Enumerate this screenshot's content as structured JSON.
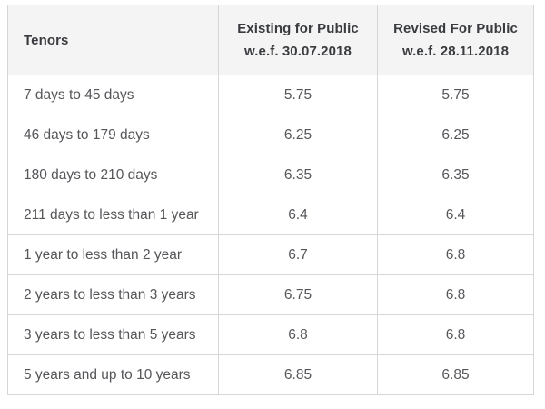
{
  "chart_data": {
    "type": "table",
    "title": "",
    "columns": [
      "Tenors",
      "Existing for Public w.e.f. 30.07.2018",
      "Revised For Public w.e.f. 28.11.2018"
    ],
    "categories": [
      "7 days to 45 days",
      "46 days to 179 days",
      "180 days to 210 days",
      "211 days to less than 1 year",
      "1 year to less than 2 year",
      "2 years to less than 3 years",
      "3 years to less than 5 years",
      "5 years and up to 10 years"
    ],
    "series": [
      {
        "name": "Existing for Public w.e.f. 30.07.2018",
        "values": [
          5.75,
          6.25,
          6.35,
          6.4,
          6.7,
          6.75,
          6.8,
          6.85
        ]
      },
      {
        "name": "Revised For Public w.e.f. 28.11.2018",
        "values": [
          5.75,
          6.25,
          6.35,
          6.4,
          6.8,
          6.8,
          6.8,
          6.85
        ]
      }
    ]
  },
  "table": {
    "header": {
      "tenors_label": "Tenors",
      "existing_line1": "Existing for Public",
      "existing_line2": "w.e.f. 30.07.2018",
      "revised_line1": "Revised For Public",
      "revised_line2": "w.e.f. 28.11.2018"
    },
    "rows": [
      {
        "tenor": "7 days to 45 days",
        "existing": "5.75",
        "revised": "5.75"
      },
      {
        "tenor": "46 days to 179 days",
        "existing": "6.25",
        "revised": "6.25"
      },
      {
        "tenor": "180 days to 210 days",
        "existing": "6.35",
        "revised": "6.35"
      },
      {
        "tenor": "211 days to less than 1 year",
        "existing": "6.4",
        "revised": "6.4"
      },
      {
        "tenor": "1 year to less than 2 year",
        "existing": "6.7",
        "revised": "6.8"
      },
      {
        "tenor": "2 years to less than 3 years",
        "existing": "6.75",
        "revised": "6.8"
      },
      {
        "tenor": "3 years to less than 5 years",
        "existing": "6.8",
        "revised": "6.8"
      },
      {
        "tenor": "5 years and up to 10 years",
        "existing": "6.85",
        "revised": "6.85"
      }
    ]
  },
  "colors": {
    "header_background": "#f4f4f5",
    "header_text": "#393b3f",
    "body_text": "#54565a",
    "border": "#d6d6d6",
    "page_background": "#ffffff"
  }
}
